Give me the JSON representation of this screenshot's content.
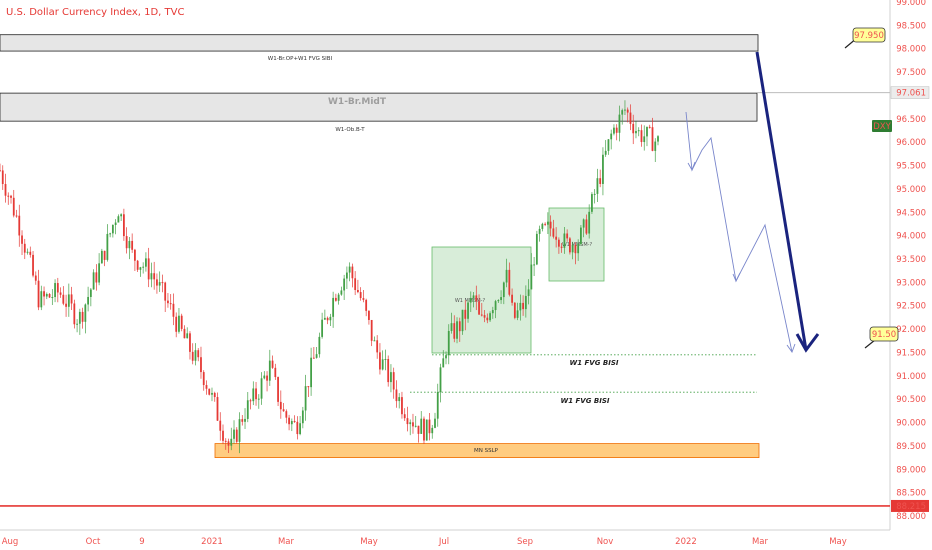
{
  "header": {
    "title": "U.S. Dollar Currency Index, 1D, TVC"
  },
  "colors": {
    "accent_red": "#ef5350",
    "bull": "#43a047",
    "bear": "#e53935",
    "projection": "#1a237e",
    "zone_grey": "#e6e6e6",
    "box_green": "#c8e6c9",
    "sslp": "#ffcc80",
    "badge_dxy": "#2e7d32",
    "callout": "#ffff99"
  },
  "chart_data": {
    "type": "candlestick",
    "title": "U.S. Dollar Currency Index, 1D, TVC",
    "symbol": "DXY",
    "ylim": [
      88.0,
      99.0
    ],
    "y_ticks": [
      "99.000",
      "98.500",
      "98.000",
      "97.500",
      "97.000",
      "96.500",
      "96.000",
      "95.500",
      "95.000",
      "94.500",
      "94.000",
      "93.500",
      "93.000",
      "92.500",
      "92.000",
      "91.500",
      "91.000",
      "90.500",
      "90.000",
      "89.500",
      "89.000",
      "88.500",
      "88.000"
    ],
    "x_ticks": [
      "Aug",
      "Oct",
      "9",
      "2021",
      "Mar",
      "May",
      "Jul",
      "Sep",
      "Nov",
      "2022",
      "Mar",
      "May"
    ],
    "price_path": [
      [
        0,
        95.4
      ],
      [
        0.03,
        94.2
      ],
      [
        0.06,
        92.6
      ],
      [
        0.09,
        92.8
      ],
      [
        0.12,
        92.2
      ],
      [
        0.15,
        93.3
      ],
      [
        0.18,
        94.6
      ],
      [
        0.2,
        93.6
      ],
      [
        0.23,
        93.2
      ],
      [
        0.26,
        92.4
      ],
      [
        0.28,
        91.8
      ],
      [
        0.31,
        91.0
      ],
      [
        0.33,
        90.2
      ],
      [
        0.35,
        89.4
      ],
      [
        0.37,
        90.2
      ],
      [
        0.39,
        90.6
      ],
      [
        0.41,
        91.2
      ],
      [
        0.43,
        90.2
      ],
      [
        0.45,
        89.9
      ],
      [
        0.47,
        91.0
      ],
      [
        0.49,
        92.0
      ],
      [
        0.51,
        92.8
      ],
      [
        0.53,
        93.3
      ],
      [
        0.55,
        92.6
      ],
      [
        0.57,
        91.6
      ],
      [
        0.59,
        91.0
      ],
      [
        0.61,
        90.4
      ],
      [
        0.63,
        90.0
      ],
      [
        0.65,
        89.8
      ],
      [
        0.66,
        90.2
      ],
      [
        0.68,
        91.8
      ],
      [
        0.7,
        92.1
      ],
      [
        0.72,
        92.7
      ],
      [
        0.73,
        92.1
      ],
      [
        0.75,
        92.6
      ],
      [
        0.77,
        93.1
      ],
      [
        0.78,
        92.2
      ],
      [
        0.8,
        92.6
      ],
      [
        0.81,
        93.5
      ],
      [
        0.82,
        94.0
      ],
      [
        0.84,
        94.2
      ],
      [
        0.86,
        93.8
      ],
      [
        0.88,
        93.9
      ],
      [
        0.89,
        94.2
      ],
      [
        0.91,
        95.2
      ],
      [
        0.93,
        96.2
      ],
      [
        0.95,
        96.7
      ],
      [
        0.97,
        96.2
      ],
      [
        1.0,
        96.0
      ]
    ],
    "zones": [
      {
        "label": "W1-Br.OP+W1 FVG SIBI",
        "from": 97.95,
        "to": 98.3
      },
      {
        "label": "W1-Ob.B-T",
        "from": 96.45,
        "to": 97.05
      },
      {
        "label": "MN SSLP",
        "from": 89.25,
        "to": 89.55
      }
    ],
    "levels": [
      {
        "label": "W1 FVG BISI",
        "value": 91.45
      },
      {
        "label": "W1 FVG BISI",
        "value": 90.65
      },
      {
        "label": "97.061",
        "value": 97.061
      },
      {
        "label": "88.215",
        "value": 88.215
      }
    ],
    "annotations": {
      "midt": "W1-Br.MidT",
      "target_high": "97.950",
      "target_low": "91.50",
      "last_tag": "DXY",
      "box1_label": "W1 MMSM-?",
      "box2_label": "W1 MMSM-?"
    },
    "projection_path": [
      [
        686,
        112
      ],
      [
        692,
        170
      ],
      [
        702,
        150
      ],
      [
        711,
        138
      ],
      [
        736,
        281
      ],
      [
        765,
        225
      ],
      [
        792,
        352
      ]
    ],
    "main_projection": [
      [
        757,
        52
      ],
      [
        806,
        350
      ]
    ]
  }
}
